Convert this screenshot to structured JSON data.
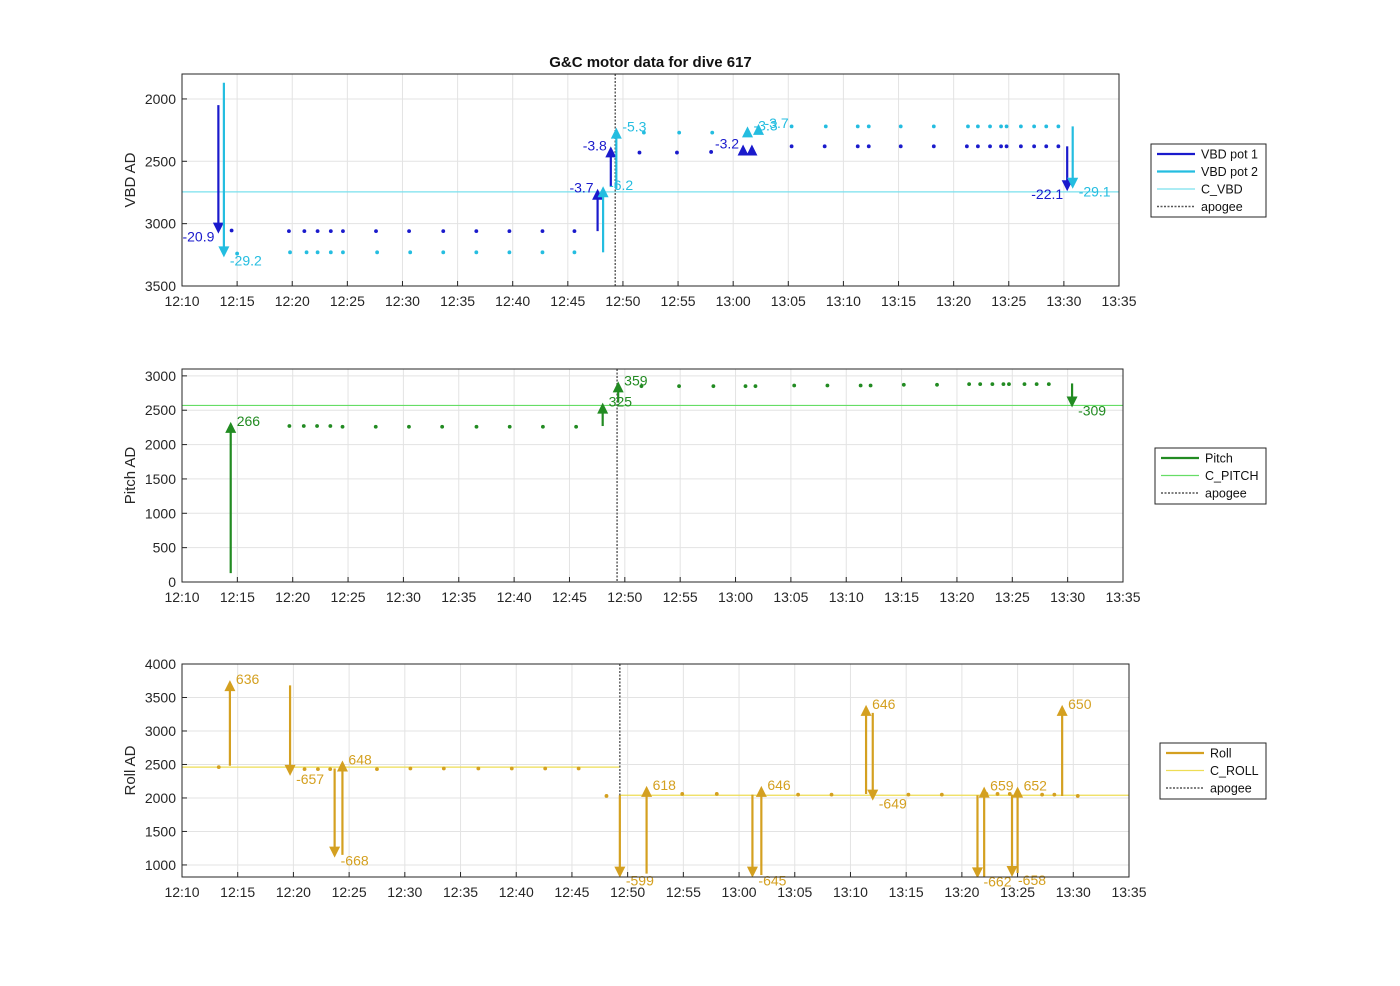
{
  "chart_data": [
    {
      "type": "scatter",
      "title": "G&C motor data for dive 617",
      "ylabel": "VBD AD",
      "xlim": [
        "12:10",
        "13:35"
      ],
      "ylim": [
        1800,
        3500
      ],
      "y_reversed": true,
      "xticks": [
        "12:10",
        "12:15",
        "12:20",
        "12:25",
        "12:30",
        "12:35",
        "12:40",
        "12:45",
        "12:50",
        "12:55",
        "13:00",
        "13:05",
        "13:10",
        "13:15",
        "13:20",
        "13:25",
        "13:30",
        "13:35"
      ],
      "yticks": [
        2000,
        2500,
        3000,
        3500
      ],
      "grid": true,
      "legend_position": "right",
      "legend": [
        "VBD pot 1",
        "VBD pot 2",
        "C_VBD",
        "apogee"
      ],
      "colors": {
        "pot1": "#1a1acc",
        "pot2": "#24bde0",
        "c_line": "#7ae0ee",
        "apogee": "#555555"
      },
      "c_value": 2745,
      "apogee": "12:49.3",
      "series": [
        {
          "name": "VBD pot 1",
          "x": [
            "12:14.5",
            "12:19.7",
            "12:21.1",
            "12:22.3",
            "12:23.5",
            "12:24.6",
            "12:27.6",
            "12:30.6",
            "12:33.7",
            "12:36.7",
            "12:39.7",
            "12:42.7",
            "12:45.6",
            "12:51.5",
            "12:54.9",
            "12:58.0",
            "13:05.3",
            "13:08.3",
            "13:11.3",
            "13:12.3",
            "13:15.2",
            "13:18.2",
            "13:21.2",
            "13:22.2",
            "13:23.3",
            "13:24.3",
            "13:24.8",
            "13:26.1",
            "13:27.3",
            "13:28.4",
            "13:29.5"
          ],
          "y": [
            3055,
            3060,
            3060,
            3060,
            3060,
            3060,
            3060,
            3060,
            3060,
            3060,
            3060,
            3060,
            3060,
            2430,
            2430,
            2425,
            2380,
            2380,
            2380,
            2380,
            2380,
            2380,
            2380,
            2380,
            2380,
            2380,
            2380,
            2380,
            2380,
            2380,
            2380
          ]
        },
        {
          "name": "VBD pot 2",
          "x": [
            "12:15.0",
            "12:19.8",
            "12:21.3",
            "12:22.3",
            "12:23.5",
            "12:24.6",
            "12:27.7",
            "12:30.7",
            "12:33.7",
            "12:36.7",
            "12:39.7",
            "12:42.7",
            "12:45.6",
            "12:51.9",
            "12:55.1",
            "12:58.1",
            "13:05.3",
            "13:08.4",
            "13:11.3",
            "13:12.3",
            "13:15.2",
            "13:18.2",
            "13:21.3",
            "13:22.2",
            "13:23.3",
            "13:24.3",
            "13:24.8",
            "13:26.1",
            "13:27.3",
            "13:28.4",
            "13:29.5"
          ],
          "y": [
            3240,
            3230,
            3230,
            3230,
            3230,
            3230,
            3230,
            3230,
            3230,
            3230,
            3230,
            3230,
            3230,
            2270,
            2270,
            2270,
            2220,
            2220,
            2220,
            2220,
            2220,
            2220,
            2220,
            2220,
            2220,
            2220,
            2220,
            2220,
            2220,
            2220,
            2220
          ]
        }
      ],
      "moves": [
        {
          "series": "VBD pot 1",
          "x": "12:13.3",
          "from": 2050,
          "to": 3080,
          "label": "-20.9",
          "label_side": "left"
        },
        {
          "series": "VBD pot 2",
          "x": "12:13.8",
          "from": 1870,
          "to": 3270,
          "label": "-29.2",
          "label_side": "right"
        },
        {
          "series": "VBD pot 1",
          "x": "12:47.7",
          "from": 3060,
          "to": 2720,
          "label": "-3.7",
          "label_side": "left"
        },
        {
          "series": "VBD pot 2",
          "x": "12:48.2",
          "from": 3230,
          "to": 2700,
          "label": "-6.2",
          "label_side": "right"
        },
        {
          "series": "VBD pot 1",
          "x": "12:48.9",
          "from": 2700,
          "to": 2380,
          "label": "-3.8",
          "label_side": "left"
        },
        {
          "series": "VBD pot 2",
          "x": "12:49.4",
          "from": 2720,
          "to": 2230,
          "label": "-5.3",
          "label_side": "right"
        },
        {
          "series": "VBD pot 1",
          "x": "13:00.9",
          "from": 2400,
          "to": 2365,
          "label": "-3.2",
          "label_side": "left"
        },
        {
          "series": "VBD pot 1",
          "x": "13:01.7",
          "from": 2400,
          "to": 2365,
          "label": "",
          "label_side": "left"
        },
        {
          "series": "VBD pot 2",
          "x": "13:01.3",
          "from": 2260,
          "to": 2220,
          "label": "-3.3",
          "label_side": "right"
        },
        {
          "series": "VBD pot 2",
          "x": "13:02.3",
          "from": 2240,
          "to": 2200,
          "label": "-3.7",
          "label_side": "right"
        },
        {
          "series": "VBD pot 1",
          "x": "13:30.3",
          "from": 2380,
          "to": 2740,
          "label": "-22.1",
          "label_side": "left"
        },
        {
          "series": "VBD pot 2",
          "x": "13:30.8",
          "from": 2220,
          "to": 2720,
          "label": "-29.1",
          "label_side": "right"
        }
      ]
    },
    {
      "type": "scatter",
      "title": "",
      "ylabel": "Pitch AD",
      "xlim": [
        "12:10",
        "13:35"
      ],
      "ylim": [
        0,
        3100
      ],
      "xticks": [
        "12:10",
        "12:15",
        "12:20",
        "12:25",
        "12:30",
        "12:35",
        "12:40",
        "12:45",
        "12:50",
        "12:55",
        "13:00",
        "13:05",
        "13:10",
        "13:15",
        "13:20",
        "13:25",
        "13:30",
        "13:35"
      ],
      "yticks": [
        0,
        500,
        1000,
        1500,
        2000,
        2500,
        3000
      ],
      "grid": true,
      "legend_position": "right",
      "legend": [
        "Pitch",
        "C_PITCH",
        "apogee"
      ],
      "colors": {
        "pitch": "#228b22",
        "c_line": "#66dd66",
        "apogee": "#555555"
      },
      "c_value": 2570,
      "apogee": "12:49.3",
      "series": [
        {
          "name": "Pitch",
          "x": [
            "12:19.7",
            "12:21.0",
            "12:22.2",
            "12:23.4",
            "12:24.5",
            "12:27.5",
            "12:30.5",
            "12:33.5",
            "12:36.6",
            "12:39.6",
            "12:42.6",
            "12:45.6",
            "12:51.5",
            "12:54.9",
            "12:58.0",
            "13:00.9",
            "13:01.8",
            "13:05.3",
            "13:08.3",
            "13:11.3",
            "13:12.2",
            "13:15.2",
            "13:18.2",
            "13:21.1",
            "13:22.1",
            "13:23.2",
            "13:24.2",
            "13:24.7",
            "13:26.1",
            "13:27.2",
            "13:28.3"
          ],
          "y": [
            2270,
            2270,
            2270,
            2270,
            2260,
            2260,
            2260,
            2260,
            2260,
            2260,
            2260,
            2260,
            2850,
            2850,
            2850,
            2850,
            2850,
            2860,
            2860,
            2860,
            2860,
            2870,
            2870,
            2880,
            2880,
            2880,
            2880,
            2880,
            2880,
            2880,
            2880
          ]
        }
      ],
      "moves": [
        {
          "series": "Pitch",
          "x": "12:14.4",
          "from": 130,
          "to": 2330,
          "label": "266",
          "label_side": "right"
        },
        {
          "series": "Pitch",
          "x": "12:48.0",
          "from": 2270,
          "to": 2610,
          "label": "325",
          "label_side": "right"
        },
        {
          "series": "Pitch",
          "x": "12:49.4",
          "from": 2610,
          "to": 2920,
          "label": "359",
          "label_side": "right"
        },
        {
          "series": "Pitch",
          "x": "13:30.4",
          "from": 2890,
          "to": 2540,
          "label": "-309",
          "label_side": "right"
        }
      ]
    },
    {
      "type": "scatter",
      "title": "",
      "ylabel": "Roll AD",
      "xlim": [
        "12:10",
        "13:35"
      ],
      "ylim": [
        820,
        4000
      ],
      "xticks": [
        "12:10",
        "12:15",
        "12:20",
        "12:25",
        "12:30",
        "12:35",
        "12:40",
        "12:45",
        "12:50",
        "12:55",
        "13:00",
        "13:05",
        "13:10",
        "13:15",
        "13:20",
        "13:25",
        "13:30",
        "13:35"
      ],
      "yticks": [
        1000,
        1500,
        2000,
        2500,
        3000,
        3500,
        4000
      ],
      "grid": true,
      "legend_position": "right",
      "legend": [
        "Roll",
        "C_ROLL",
        "apogee"
      ],
      "colors": {
        "roll": "#d4a020",
        "c_line": "#eedd55",
        "apogee": "#555555"
      },
      "c_segments": [
        {
          "x0": "12:10",
          "x1": "12:49.3",
          "y": 2460
        },
        {
          "x0": "12:49.3",
          "x1": "13:35",
          "y": 2040
        }
      ],
      "apogee": "12:49.3",
      "series": [
        {
          "name": "Roll",
          "x": [
            "12:13.3",
            "12:21.0",
            "12:22.2",
            "12:23.3",
            "12:27.5",
            "12:30.5",
            "12:33.5",
            "12:36.6",
            "12:39.6",
            "12:42.6",
            "12:45.6",
            "12:48.1",
            "12:54.9",
            "12:58.0",
            "13:05.3",
            "13:08.3",
            "13:15.2",
            "13:18.2",
            "13:22.2",
            "13:23.2",
            "13:24.3",
            "13:27.2",
            "13:28.3",
            "13:30.4"
          ],
          "y": [
            2460,
            2430,
            2430,
            2430,
            2430,
            2440,
            2440,
            2440,
            2440,
            2440,
            2440,
            2030,
            2060,
            2060,
            2050,
            2050,
            2050,
            2050,
            2060,
            2060,
            2060,
            2050,
            2050,
            2030
          ]
        }
      ],
      "moves": [
        {
          "series": "Roll",
          "x": "12:14.3",
          "from": 2480,
          "to": 3760,
          "label": "636",
          "label_side": "right"
        },
        {
          "series": "Roll",
          "x": "12:19.7",
          "from": 3680,
          "to": 2330,
          "label": "-657",
          "label_side": "right"
        },
        {
          "series": "Roll",
          "x": "12:23.7",
          "from": 2440,
          "to": 1110,
          "label": "-668",
          "label_side": "right"
        },
        {
          "series": "Roll",
          "x": "12:24.4",
          "from": 1150,
          "to": 2560,
          "label": "648",
          "label_side": "right"
        },
        {
          "series": "Roll",
          "x": "12:49.3",
          "from": 2040,
          "to": 810,
          "label": "-599",
          "label_side": "right"
        },
        {
          "series": "Roll",
          "x": "12:51.7",
          "from": 870,
          "to": 2180,
          "label": "618",
          "label_side": "right"
        },
        {
          "series": "Roll",
          "x": "13:01.2",
          "from": 2050,
          "to": 810,
          "label": "-645",
          "label_side": "right"
        },
        {
          "series": "Roll",
          "x": "13:02.0",
          "from": 850,
          "to": 2180,
          "label": "646",
          "label_side": "right"
        },
        {
          "series": "Roll",
          "x": "13:11.4",
          "from": 2060,
          "to": 3390,
          "label": "646",
          "label_side": "right"
        },
        {
          "series": "Roll",
          "x": "13:12.0",
          "from": 3270,
          "to": 1960,
          "label": "-649",
          "label_side": "right"
        },
        {
          "series": "Roll",
          "x": "13:21.4",
          "from": 2040,
          "to": 800,
          "label": "-662",
          "label_side": "right"
        },
        {
          "series": "Roll",
          "x": "13:22.0",
          "from": 820,
          "to": 2170,
          "label": "659",
          "label_side": "right"
        },
        {
          "series": "Roll",
          "x": "13:24.5",
          "from": 2050,
          "to": 820,
          "label": "-658",
          "label_side": "right"
        },
        {
          "series": "Roll",
          "x": "13:25.0",
          "from": 880,
          "to": 2170,
          "label": "652",
          "label_side": "right"
        },
        {
          "series": "Roll",
          "x": "13:29.0",
          "from": 2030,
          "to": 3390,
          "label": "650",
          "label_side": "right"
        }
      ]
    }
  ]
}
